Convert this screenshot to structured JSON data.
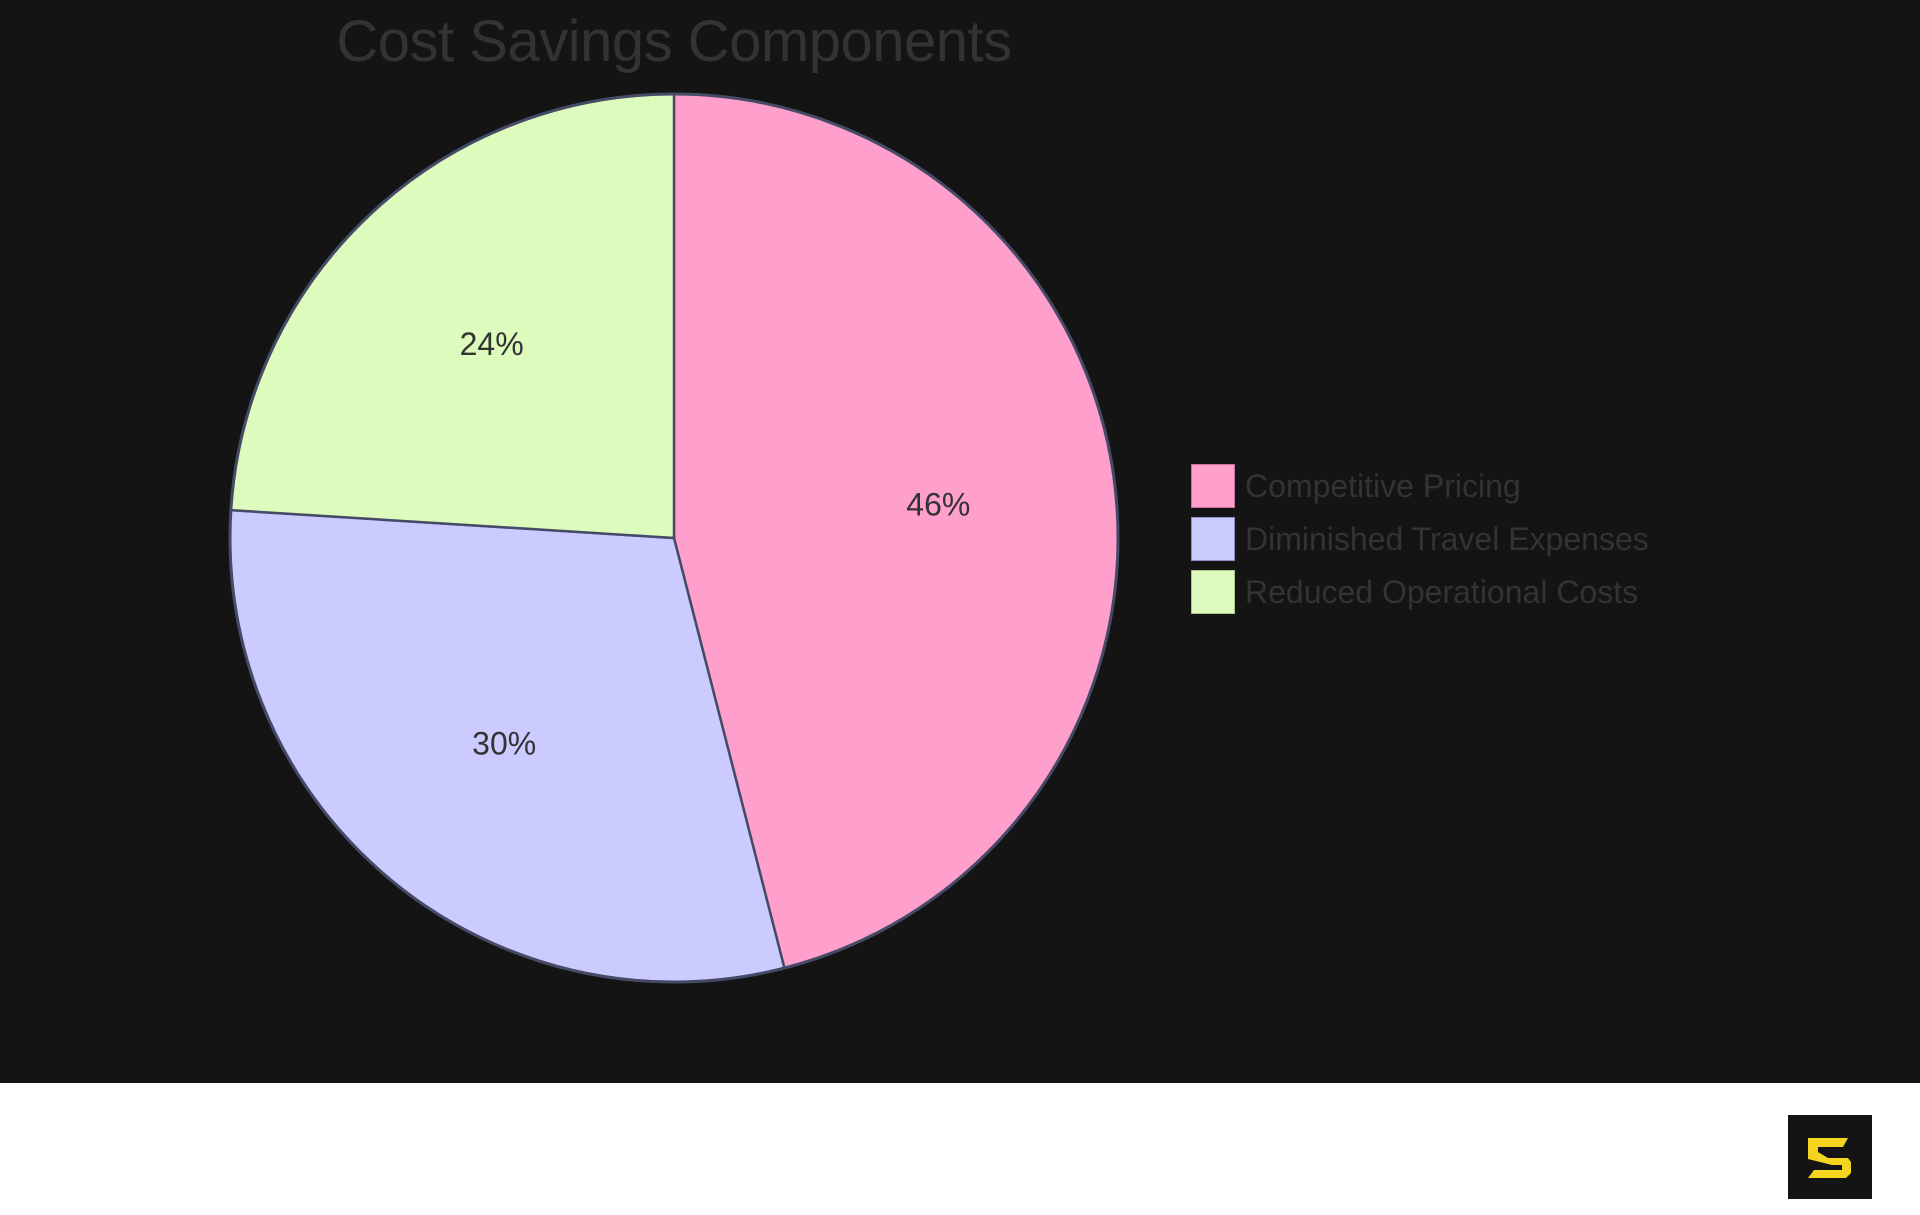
{
  "chart_data": {
    "type": "pie",
    "title": "Cost Savings Components",
    "categories": [
      "Competitive Pricing",
      "Diminished Travel Expenses",
      "Reduced Operational Costs"
    ],
    "values": [
      46,
      30,
      24
    ],
    "labels": [
      "46%",
      "30%",
      "24%"
    ],
    "colors": [
      "#ffa0cc",
      "#cbcbff",
      "#ddfbbd"
    ],
    "stroke_color": "#454a66",
    "legend_position": "right",
    "start_angle_deg": 0,
    "direction": "clockwise"
  },
  "header": {
    "title": "Cost Savings Components"
  },
  "legend": {
    "items": [
      {
        "label": "Competitive Pricing",
        "color": "#ffa0cc",
        "border": "#c8709a"
      },
      {
        "label": "Diminished Travel Expenses",
        "color": "#cbcbff",
        "border": "#8f8fc8"
      },
      {
        "label": "Reduced Operational Costs",
        "color": "#ddfbbd",
        "border": "#a8c488"
      }
    ]
  },
  "theme": {
    "background": "#141414",
    "text": "#333333",
    "logo_accent": "#f5d41f"
  },
  "footer": {
    "logo": "s-logo-icon"
  }
}
